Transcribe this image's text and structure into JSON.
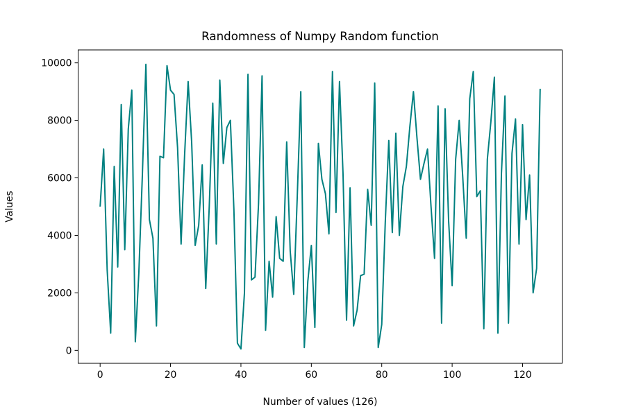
{
  "chart_data": {
    "type": "line",
    "title": "Randomness of Numpy Random function",
    "xlabel": "Number of values (126)",
    "ylabel": "Values",
    "xlim": [
      -6.25,
      131.25
    ],
    "ylim": [
      -450,
      10450
    ],
    "xticks": [
      0,
      20,
      40,
      60,
      80,
      100,
      120
    ],
    "yticks": [
      0,
      2000,
      4000,
      6000,
      8000,
      10000
    ],
    "grid": false,
    "line_color": "#008080",
    "series": [
      {
        "values": [
          5000,
          7000,
          2800,
          600,
          6400,
          2900,
          8550,
          3500,
          7700,
          9050,
          300,
          2700,
          6100,
          9950,
          4550,
          3900,
          850,
          6750,
          6700,
          9900,
          9050,
          8900,
          7050,
          3700,
          6800,
          9350,
          7250,
          3650,
          4350,
          6450,
          2150,
          5000,
          8600,
          3700,
          9400,
          6500,
          7750,
          8000,
          4900,
          250,
          50,
          2000,
          9600,
          2450,
          2550,
          5100,
          9550,
          700,
          3100,
          1850,
          4650,
          3200,
          3100,
          7250,
          3450,
          1950,
          5350,
          9000,
          100,
          2400,
          3650,
          800,
          7200,
          5950,
          5450,
          4050,
          9700,
          4800,
          9350,
          6150,
          1050,
          5650,
          850,
          1400,
          2600,
          2650,
          5600,
          4350,
          9300,
          100,
          900,
          4450,
          7300,
          4100,
          7550,
          4000,
          5700,
          6400,
          7800,
          9000,
          7400,
          5950,
          6500,
          7000,
          5000,
          3200,
          8500,
          950,
          8400,
          4500,
          2250,
          6650,
          8000,
          6050,
          3900,
          8750,
          9700,
          5350,
          5550,
          750,
          6650,
          7950,
          9500,
          600,
          6150,
          8850,
          950,
          6850,
          8050,
          3700,
          7850,
          4550,
          6100,
          2000,
          2850,
          9100
        ]
      }
    ]
  }
}
